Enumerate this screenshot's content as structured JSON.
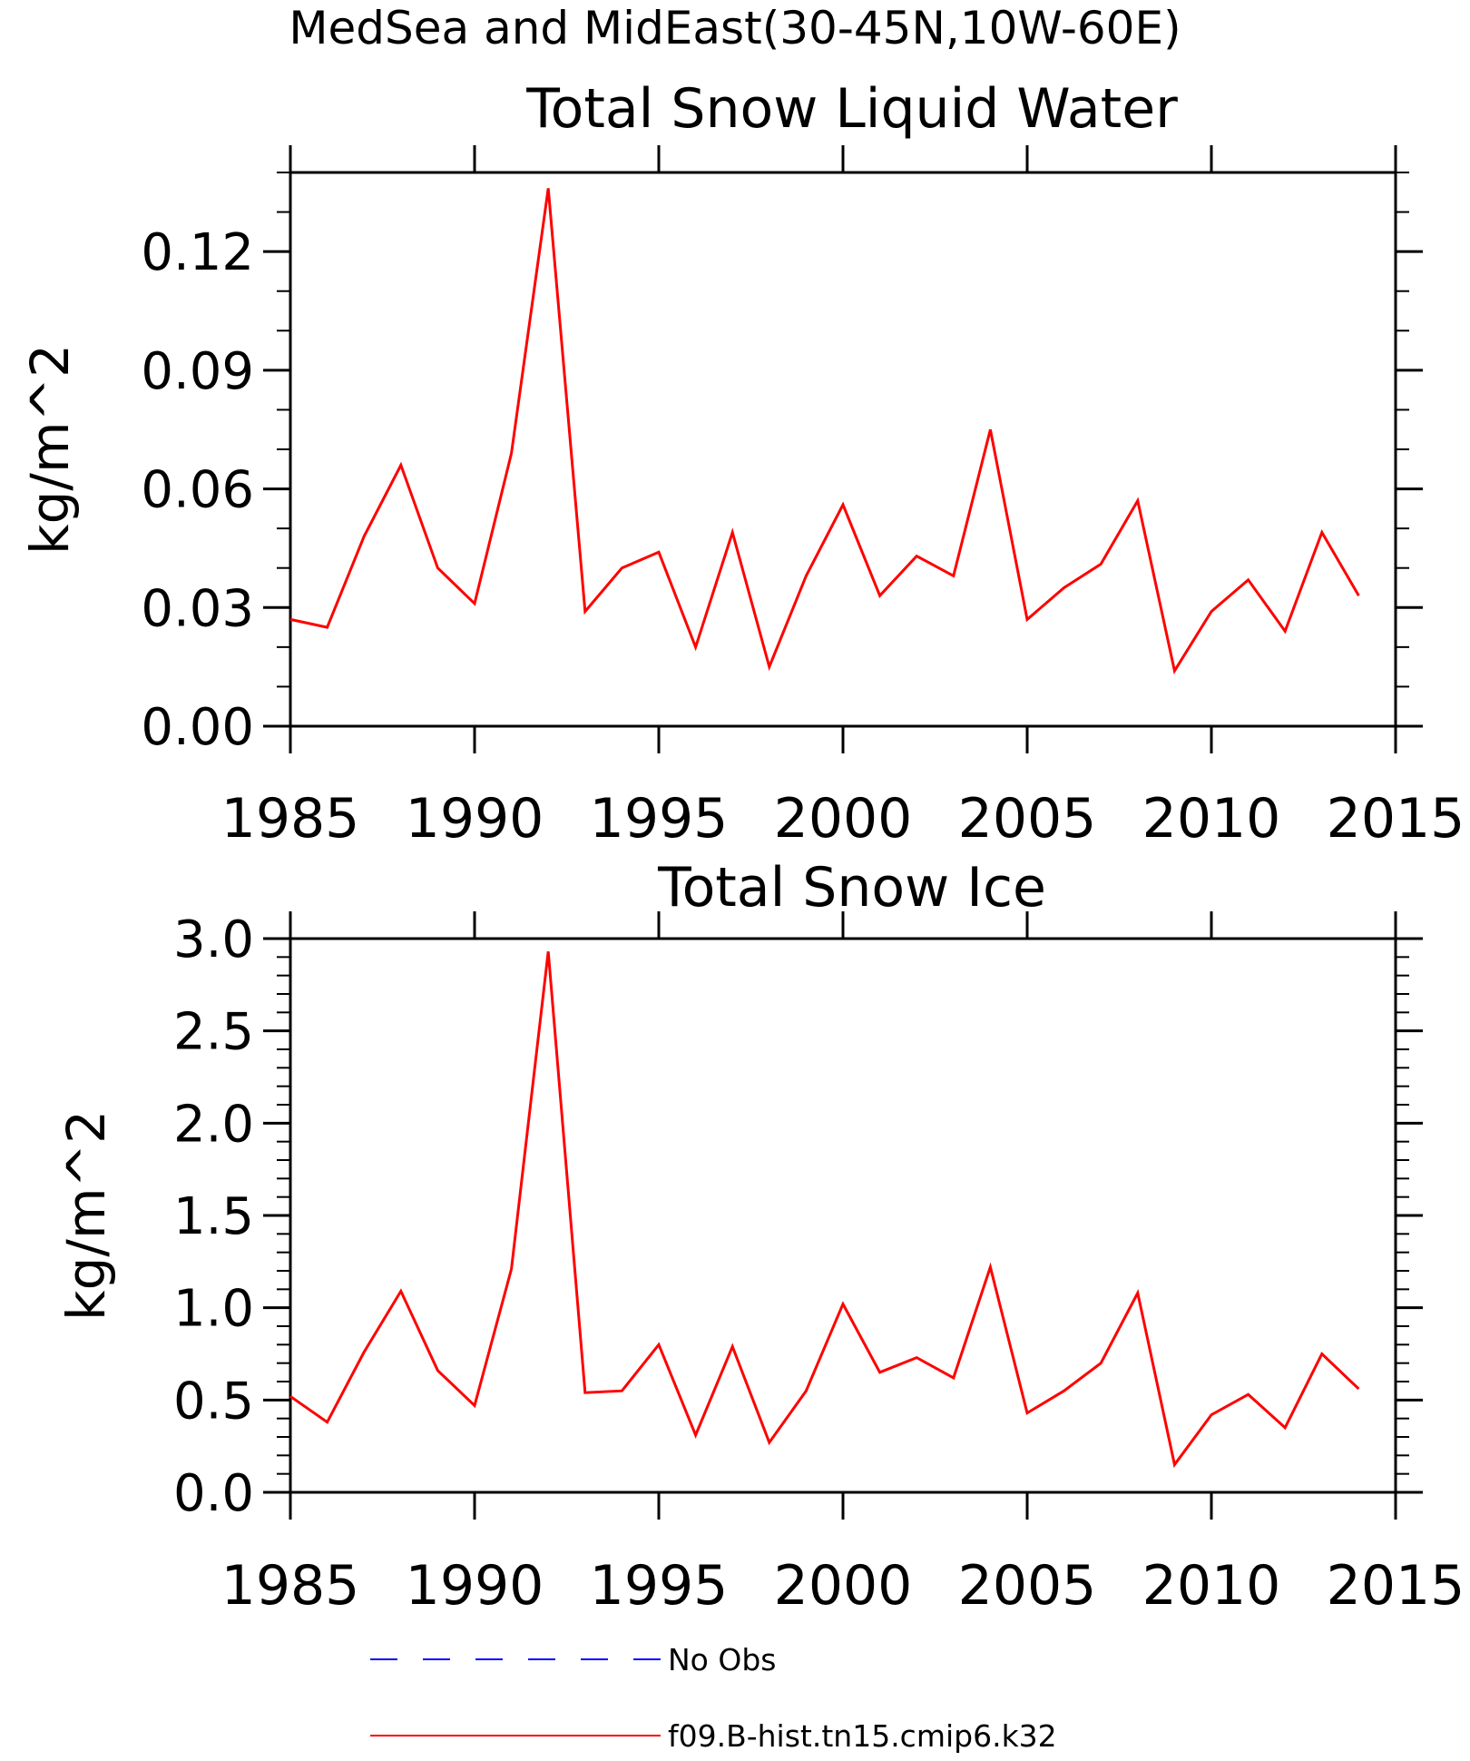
{
  "figure_title": "MedSea and MidEast(30-45N,10W-60E)",
  "colors": {
    "model": "#ff0000",
    "obs": "#0000ff",
    "axes": "#000000"
  },
  "legend": [
    {
      "label": "No Obs",
      "style": "dashed",
      "color": "#0000ff"
    },
    {
      "label": "f09.B-hist.tn15.cmip6.k32",
      "style": "solid",
      "color": "#ff0000"
    }
  ],
  "chart_data": [
    {
      "type": "line",
      "title": "Total Snow Liquid Water",
      "xlabel": "",
      "ylabel": "kg/m^2",
      "xlim": [
        1985,
        2015
      ],
      "ylim": [
        0,
        0.14
      ],
      "xticks": [
        1985,
        1990,
        1995,
        2000,
        2005,
        2010,
        2015
      ],
      "xtick_labels": [
        "1985",
        "1990",
        "1995",
        "2000",
        "2005",
        "2010",
        "2015"
      ],
      "yticks": [
        0,
        0.03,
        0.06,
        0.09,
        0.12
      ],
      "ytick_labels": [
        "0.00",
        "0.03",
        "0.06",
        "0.09",
        "0.12"
      ],
      "yminor": 0.01,
      "series": [
        {
          "color": "#ff0000",
          "x": [
            1985,
            1986,
            1987,
            1988,
            1989,
            1990,
            1991,
            1992,
            1993,
            1994,
            1995,
            1996,
            1997,
            1998,
            1999,
            2000,
            2001,
            2002,
            2003,
            2004,
            2005,
            2006,
            2007,
            2008,
            2009,
            2010,
            2011,
            2012,
            2013,
            2014
          ],
          "values": [
            0.027,
            0.025,
            0.048,
            0.066,
            0.04,
            0.031,
            0.069,
            0.136,
            0.029,
            0.04,
            0.044,
            0.02,
            0.049,
            0.015,
            0.038,
            0.056,
            0.033,
            0.043,
            0.038,
            0.075,
            0.027,
            0.035,
            0.041,
            0.057,
            0.014,
            0.029,
            0.037,
            0.024,
            0.049,
            0.033
          ]
        }
      ]
    },
    {
      "type": "line",
      "title": "Total Snow Ice",
      "xlabel": "",
      "ylabel": "kg/m^2",
      "xlim": [
        1985,
        2015
      ],
      "ylim": [
        0,
        3.0
      ],
      "xticks": [
        1985,
        1990,
        1995,
        2000,
        2005,
        2010,
        2015
      ],
      "xtick_labels": [
        "1985",
        "1990",
        "1995",
        "2000",
        "2005",
        "2010",
        "2015"
      ],
      "yticks": [
        0,
        0.5,
        1.0,
        1.5,
        2.0,
        2.5,
        3.0
      ],
      "ytick_labels": [
        "0.0",
        "0.5",
        "1.0",
        "1.5",
        "2.0",
        "2.5",
        "3.0"
      ],
      "yminor": 0.1,
      "series": [
        {
          "color": "#ff0000",
          "x": [
            1985,
            1986,
            1987,
            1988,
            1989,
            1990,
            1991,
            1992,
            1993,
            1994,
            1995,
            1996,
            1997,
            1998,
            1999,
            2000,
            2001,
            2002,
            2003,
            2004,
            2005,
            2006,
            2007,
            2008,
            2009,
            2010,
            2011,
            2012,
            2013,
            2014
          ],
          "values": [
            0.52,
            0.38,
            0.76,
            1.09,
            0.66,
            0.47,
            1.21,
            2.93,
            0.54,
            0.55,
            0.8,
            0.31,
            0.79,
            0.27,
            0.55,
            1.02,
            0.65,
            0.73,
            0.62,
            1.22,
            0.43,
            0.55,
            0.7,
            1.08,
            0.15,
            0.42,
            0.53,
            0.35,
            0.75,
            0.56
          ]
        }
      ]
    }
  ]
}
